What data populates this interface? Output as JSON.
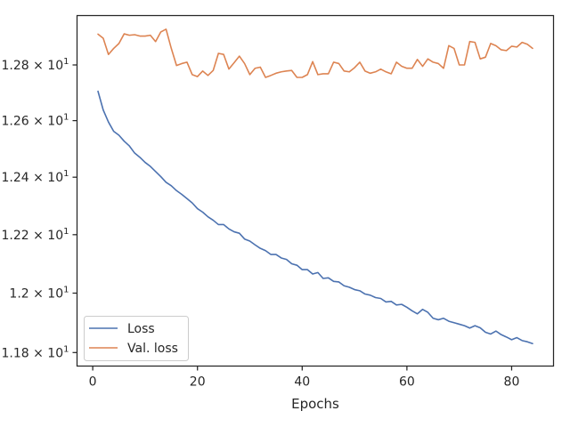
{
  "chart_data": {
    "type": "line",
    "title": "",
    "xlabel": "Epochs",
    "ylabel": "",
    "yscale": "log",
    "xlim": [
      -3,
      88
    ],
    "ylim": [
      11.755,
      12.98
    ],
    "x_ticks": [
      0,
      20,
      40,
      60,
      80
    ],
    "x_tick_labels": [
      "0",
      "20",
      "40",
      "60",
      "80"
    ],
    "y_ticks": [
      11.8,
      12.0,
      12.2,
      12.4,
      12.6,
      12.8
    ],
    "y_tick_labels": [
      {
        "mant": "1.18",
        "exp": "1"
      },
      {
        "mant": "1.2",
        "exp": "1"
      },
      {
        "mant": "1.22",
        "exp": "1"
      },
      {
        "mant": "1.24",
        "exp": "1"
      },
      {
        "mant": "1.26",
        "exp": "1"
      },
      {
        "mant": "1.28",
        "exp": "1"
      }
    ],
    "tick_prefix_times": "×",
    "tick_base": "10",
    "grid": false,
    "legend_position": "lower-left",
    "x": [
      1,
      2,
      3,
      4,
      5,
      6,
      7,
      8,
      9,
      10,
      11,
      12,
      13,
      14,
      15,
      16,
      17,
      18,
      19,
      20,
      21,
      22,
      23,
      24,
      25,
      26,
      27,
      28,
      29,
      30,
      31,
      32,
      33,
      34,
      35,
      36,
      37,
      38,
      39,
      40,
      41,
      42,
      43,
      44,
      45,
      46,
      47,
      48,
      49,
      50,
      51,
      52,
      53,
      54,
      55,
      56,
      57,
      58,
      59,
      60,
      61,
      62,
      63,
      64,
      65,
      66,
      67,
      68,
      69,
      70,
      71,
      72,
      73,
      74,
      75,
      76,
      77,
      78,
      79,
      80,
      81,
      82,
      83,
      84
    ],
    "series": [
      {
        "name": "Loss",
        "color": "#4c72b0",
        "values": [
          12.705,
          12.638,
          12.595,
          12.562,
          12.548,
          12.527,
          12.51,
          12.485,
          12.47,
          12.452,
          12.438,
          12.42,
          12.402,
          12.382,
          12.37,
          12.353,
          12.34,
          12.325,
          12.31,
          12.29,
          12.278,
          12.262,
          12.25,
          12.235,
          12.235,
          12.22,
          12.21,
          12.205,
          12.185,
          12.178,
          12.165,
          12.153,
          12.145,
          12.132,
          12.132,
          12.12,
          12.115,
          12.1,
          12.095,
          12.08,
          12.08,
          12.065,
          12.07,
          12.05,
          12.052,
          12.04,
          12.038,
          12.025,
          12.02,
          12.012,
          12.008,
          11.997,
          11.993,
          11.985,
          11.982,
          11.97,
          11.972,
          11.96,
          11.962,
          11.952,
          11.94,
          11.93,
          11.945,
          11.935,
          11.915,
          11.91,
          11.915,
          11.905,
          11.9,
          11.895,
          11.89,
          11.882,
          11.89,
          11.883,
          11.868,
          11.862,
          11.872,
          11.86,
          11.852,
          11.843,
          11.85,
          11.84,
          11.836,
          11.83
        ]
      },
      {
        "name": "Val. loss",
        "color": "#dd8452",
        "values": [
          12.912,
          12.897,
          12.838,
          12.86,
          12.878,
          12.913,
          12.908,
          12.91,
          12.905,
          12.905,
          12.908,
          12.885,
          12.92,
          12.93,
          12.86,
          12.798,
          12.805,
          12.81,
          12.765,
          12.758,
          12.778,
          12.762,
          12.78,
          12.842,
          12.838,
          12.785,
          12.808,
          12.832,
          12.805,
          12.765,
          12.788,
          12.792,
          12.755,
          12.762,
          12.77,
          12.775,
          12.778,
          12.78,
          12.755,
          12.755,
          12.765,
          12.812,
          12.765,
          12.768,
          12.768,
          12.81,
          12.805,
          12.778,
          12.775,
          12.79,
          12.81,
          12.778,
          12.77,
          12.775,
          12.785,
          12.775,
          12.768,
          12.81,
          12.795,
          12.788,
          12.788,
          12.82,
          12.795,
          12.822,
          12.81,
          12.805,
          12.788,
          12.87,
          12.86,
          12.8,
          12.8,
          12.885,
          12.882,
          12.822,
          12.828,
          12.878,
          12.87,
          12.855,
          12.852,
          12.868,
          12.865,
          12.882,
          12.875,
          12.86
        ]
      }
    ]
  }
}
